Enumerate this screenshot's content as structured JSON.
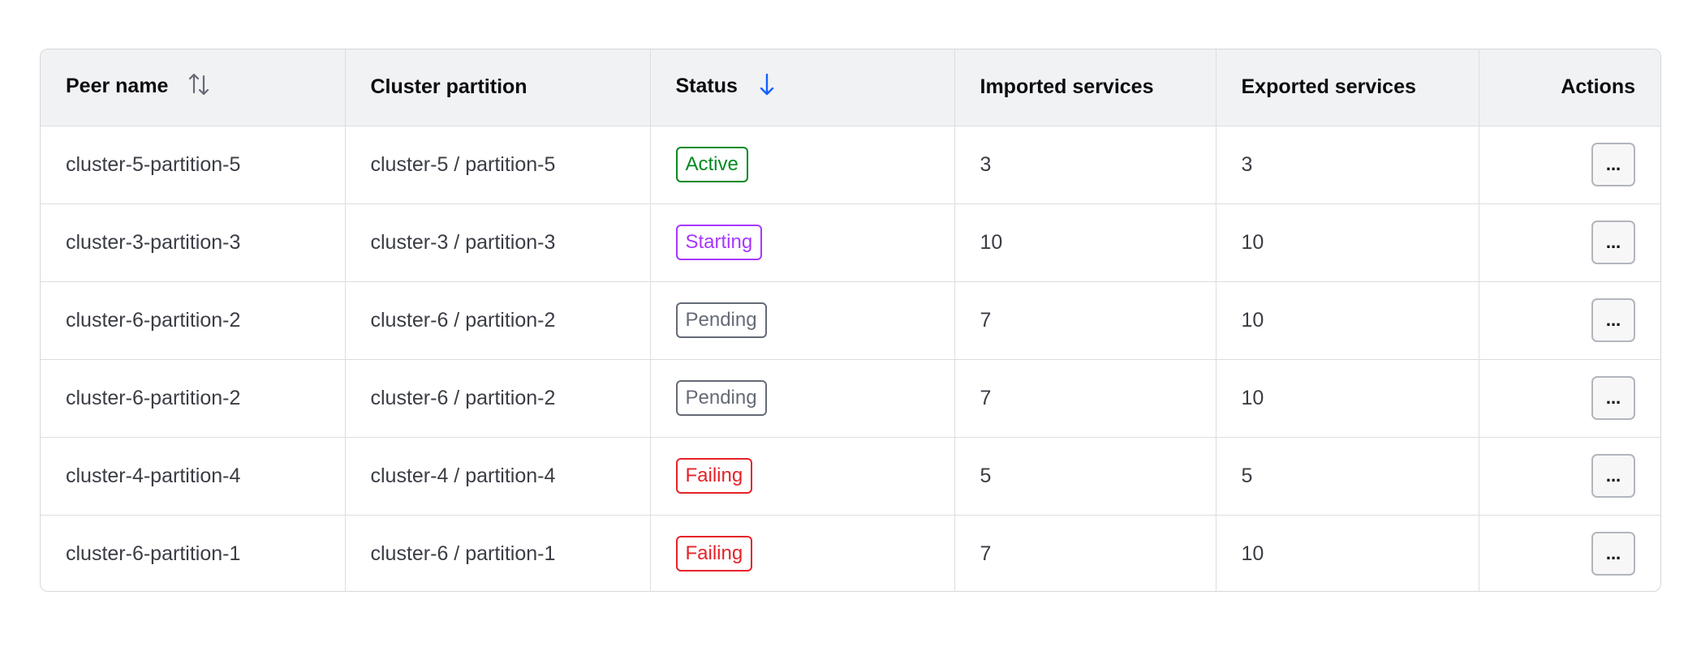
{
  "columns": {
    "peer_name": "Peer name",
    "cluster_partition": "Cluster partition",
    "status": "Status",
    "imported": "Imported services",
    "exported": "Exported services",
    "actions": "Actions"
  },
  "sort": {
    "peer_name": "unsorted",
    "status": "descending",
    "active_color": "#1060ff"
  },
  "status_colors": {
    "Active": "#008a22",
    "Starting": "#a737ff",
    "Pending": "#656a76",
    "Failing": "#e52228"
  },
  "rows": [
    {
      "peer_name": "cluster-5-partition-5",
      "cluster_partition": "cluster-5 / partition-5",
      "status": "Active",
      "imported": "3",
      "exported": "3",
      "action_label": "..."
    },
    {
      "peer_name": "cluster-3-partition-3",
      "cluster_partition": "cluster-3 / partition-3",
      "status": "Starting",
      "imported": "10",
      "exported": "10",
      "action_label": "..."
    },
    {
      "peer_name": "cluster-6-partition-2",
      "cluster_partition": "cluster-6 / partition-2",
      "status": "Pending",
      "imported": "7",
      "exported": "10",
      "action_label": "..."
    },
    {
      "peer_name": "cluster-6-partition-2",
      "cluster_partition": "cluster-6 / partition-2",
      "status": "Pending",
      "imported": "7",
      "exported": "10",
      "action_label": "..."
    },
    {
      "peer_name": "cluster-4-partition-4",
      "cluster_partition": "cluster-4 / partition-4",
      "status": "Failing",
      "imported": "5",
      "exported": "5",
      "action_label": "..."
    },
    {
      "peer_name": "cluster-6-partition-1",
      "cluster_partition": "cluster-6 / partition-1",
      "status": "Failing",
      "imported": "7",
      "exported": "10",
      "action_label": "..."
    }
  ]
}
